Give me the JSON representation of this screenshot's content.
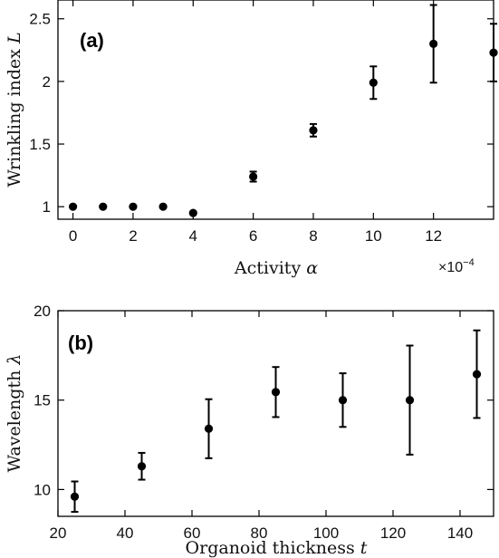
{
  "chart_data": [
    {
      "type": "scatter",
      "panel": "(a)",
      "xlabel": "Activity",
      "xlabel_symbol": "α",
      "ylabel": "Wrinkling index",
      "ylabel_symbol": "L",
      "x_multiplier": "×10",
      "x_multiplier_exp": "−4",
      "xlim": [
        -0.5,
        14
      ],
      "ylim": [
        0.9,
        2.65
      ],
      "xticks": [
        0,
        2,
        4,
        6,
        8,
        10,
        12
      ],
      "xtick_labels": [
        "0",
        "2",
        "4",
        "6",
        "8",
        "10",
        "12"
      ],
      "yticks": [
        1,
        1.5,
        2,
        2.5
      ],
      "ytick_labels": [
        "1",
        "1.5",
        "2",
        "2.5"
      ],
      "grid": false,
      "series": [
        {
          "x": [
            0,
            1,
            2,
            3,
            4,
            6,
            8,
            10,
            12,
            14
          ],
          "y": [
            1.0,
            1.0,
            1.0,
            1.0,
            0.95,
            1.24,
            1.61,
            1.99,
            2.3,
            2.23
          ],
          "yerr": [
            0,
            0,
            0,
            0,
            0,
            0.04,
            0.05,
            0.13,
            0.31,
            0.23
          ]
        }
      ]
    },
    {
      "type": "scatter",
      "panel": "(b)",
      "xlabel": "Organoid thickness",
      "xlabel_symbol": "t",
      "ylabel": "Wavelength",
      "ylabel_symbol": "λ",
      "xlim": [
        20,
        150
      ],
      "ylim": [
        8.5,
        20
      ],
      "xticks": [
        20,
        40,
        60,
        80,
        100,
        120,
        140
      ],
      "xtick_labels": [
        "20",
        "40",
        "60",
        "80",
        "100",
        "120",
        "140"
      ],
      "yticks": [
        10,
        15,
        20
      ],
      "ytick_labels": [
        "10",
        "15",
        "20"
      ],
      "grid": false,
      "series": [
        {
          "x": [
            25,
            45,
            65,
            85,
            105,
            125,
            145
          ],
          "y": [
            9.6,
            11.3,
            13.4,
            15.45,
            15.0,
            15.0,
            16.45
          ],
          "yerr": [
            0.85,
            0.75,
            1.65,
            1.4,
            1.5,
            3.05,
            2.45
          ]
        }
      ]
    }
  ]
}
